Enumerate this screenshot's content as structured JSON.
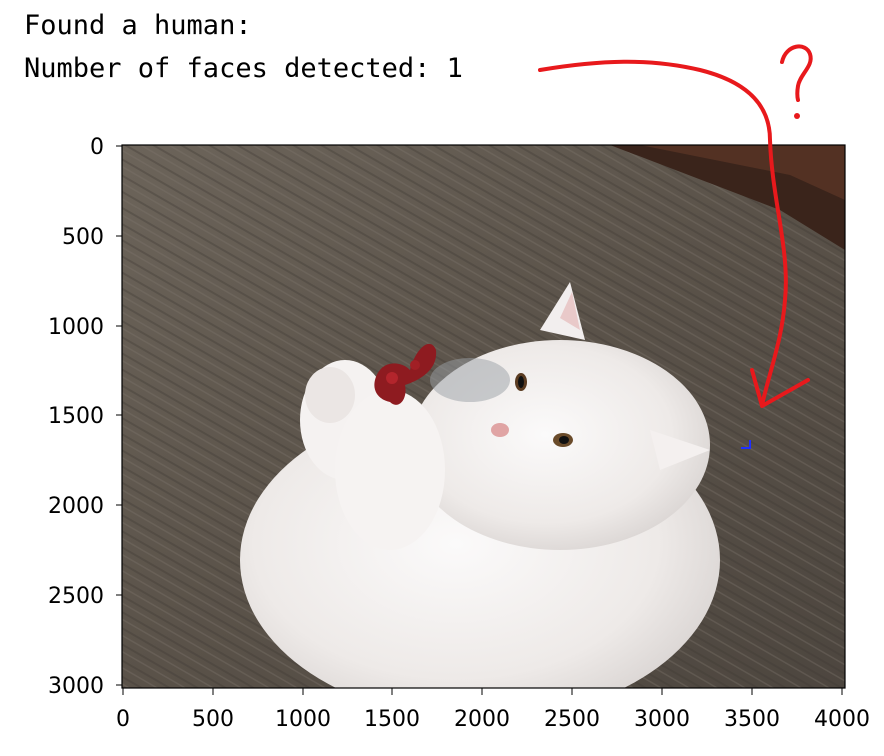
{
  "output": {
    "line1": "Found a human:",
    "line2": "Number of faces detected: 1"
  },
  "image": {
    "description_icon": "photo-white-cat-on-wooden-floor",
    "detection_box_color": "#1f2fff"
  },
  "axes": {
    "x_ticks": [
      "0",
      "500",
      "1000",
      "1500",
      "2000",
      "2500",
      "3000",
      "3500",
      "4000"
    ],
    "y_ticks": [
      "0",
      "500",
      "1000",
      "1500",
      "2000",
      "2500",
      "3000"
    ]
  },
  "annotation": {
    "question_mark": "?",
    "color": "#e8191c"
  }
}
